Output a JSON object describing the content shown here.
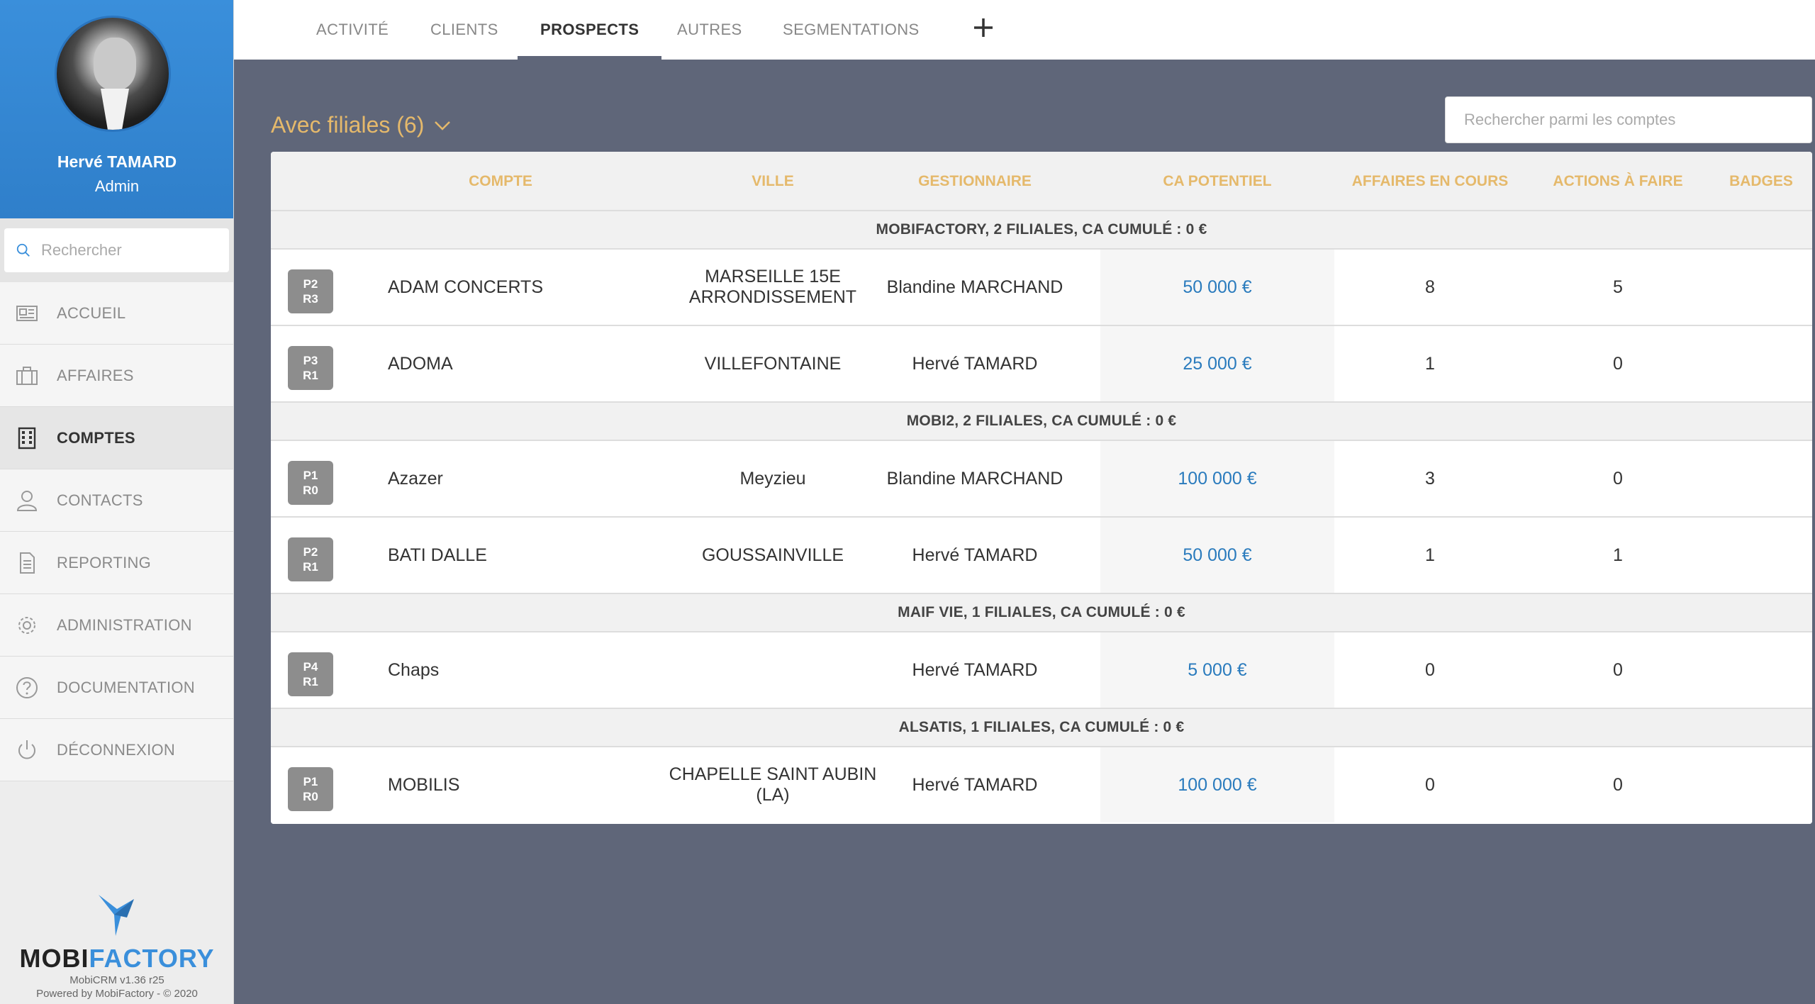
{
  "user": {
    "name": "Hervé TAMARD",
    "role": "Admin"
  },
  "sidebar": {
    "search_placeholder": "Rechercher",
    "items": [
      {
        "label": "ACCUEIL",
        "icon": "newspaper-icon"
      },
      {
        "label": "AFFAIRES",
        "icon": "briefcase-icon"
      },
      {
        "label": "COMPTES",
        "icon": "building-icon",
        "active": true
      },
      {
        "label": "CONTACTS",
        "icon": "user-icon"
      },
      {
        "label": "REPORTING",
        "icon": "document-icon"
      },
      {
        "label": "ADMINISTRATION",
        "icon": "gear-icon"
      },
      {
        "label": "DOCUMENTATION",
        "icon": "help-icon"
      },
      {
        "label": "DÉCONNEXION",
        "icon": "power-icon"
      }
    ],
    "brand": {
      "logo_part1": "MOBI",
      "logo_part2": "FACTORY",
      "version": "MobiCRM v1.36 r25",
      "powered": "Powered by MobiFactory - © 2020"
    }
  },
  "tabs": [
    {
      "label": "ACTIVITÉ"
    },
    {
      "label": "CLIENTS"
    },
    {
      "label": "PROSPECTS",
      "active": true
    },
    {
      "label": "AUTRES"
    },
    {
      "label": "SEGMENTATIONS"
    }
  ],
  "main": {
    "group_title": "Avec filiales (6)",
    "search_placeholder": "Rechercher parmi les comptes"
  },
  "table": {
    "headers": [
      "COMPTE",
      "VILLE",
      "GESTIONNAIRE",
      "CA POTENTIEL",
      "AFFAIRES EN COURS",
      "ACTIONS À FAIRE",
      "BADGES"
    ],
    "groups": [
      {
        "title": "MOBIFACTORY, 2 FILIALES, CA CUMULÉ : 0 €",
        "rows": [
          {
            "badge_p": "P2",
            "badge_r": "R3",
            "compte": "ADAM CONCERTS",
            "ville": "MARSEILLE 15E ARRONDISSEMENT",
            "gestionnaire": "Blandine MARCHAND",
            "ca": "50 000 €",
            "affaires": "8",
            "actions": "5"
          },
          {
            "badge_p": "P3",
            "badge_r": "R1",
            "compte": "ADOMA",
            "ville": "VILLEFONTAINE",
            "gestionnaire": "Hervé TAMARD",
            "ca": "25 000 €",
            "affaires": "1",
            "actions": "0"
          }
        ]
      },
      {
        "title": "MOBI2, 2 FILIALES, CA CUMULÉ : 0 €",
        "rows": [
          {
            "badge_p": "P1",
            "badge_r": "R0",
            "compte": "Azazer",
            "ville": "Meyzieu",
            "gestionnaire": "Blandine MARCHAND",
            "ca": "100 000 €",
            "affaires": "3",
            "actions": "0"
          },
          {
            "badge_p": "P2",
            "badge_r": "R1",
            "compte": "BATI DALLE",
            "ville": "GOUSSAINVILLE",
            "gestionnaire": "Hervé TAMARD",
            "ca": "50 000 €",
            "affaires": "1",
            "actions": "1"
          }
        ]
      },
      {
        "title": "MAIF VIE, 1 FILIALES, CA CUMULÉ : 0 €",
        "rows": [
          {
            "badge_p": "P4",
            "badge_r": "R1",
            "compte": "Chaps",
            "ville": "",
            "gestionnaire": "Hervé TAMARD",
            "ca": "5 000 €",
            "affaires": "0",
            "actions": "0"
          }
        ]
      },
      {
        "title": "ALSATIS, 1 FILIALES, CA CUMULÉ : 0 €",
        "rows": [
          {
            "badge_p": "P1",
            "badge_r": "R0",
            "compte": "MOBILIS",
            "ville": "CHAPELLE SAINT AUBIN (LA)",
            "gestionnaire": "Hervé TAMARD",
            "ca": "100 000 €",
            "affaires": "0",
            "actions": "0"
          }
        ]
      }
    ]
  },
  "colors": {
    "accent_gold": "#e5b96b",
    "brand_blue": "#3a8fdb",
    "link_blue": "#2a7bbd",
    "background": "#5f6679"
  }
}
